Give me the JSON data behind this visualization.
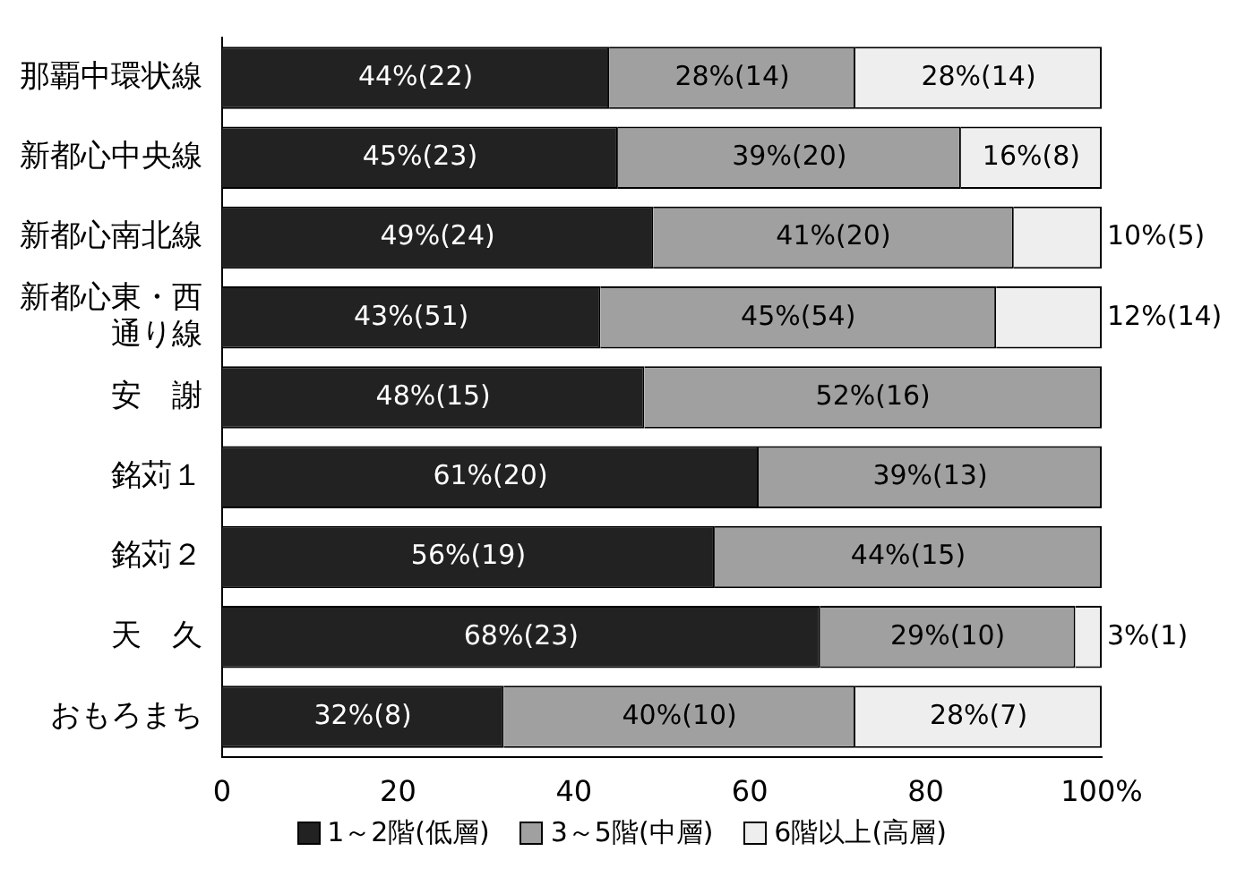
{
  "chart_data": {
    "type": "bar",
    "orientation": "horizontal",
    "stacked": true,
    "categories": [
      "那覇中環状線",
      "新都心中央線",
      "新都心南北線",
      "新都心東・西通り線",
      "安　謝",
      "銘苅１",
      "銘苅２",
      "天　久",
      "おもろまち"
    ],
    "series": [
      {
        "name": "1～2階(低層)",
        "color": "#222222",
        "values": [
          44,
          45,
          49,
          43,
          48,
          61,
          56,
          68,
          32
        ],
        "value_labels": [
          "44%(22)",
          "45%(23)",
          "49%(24)",
          "43%(51)",
          "48%(15)",
          "61%(20)",
          "56%(19)",
          "68%(23)",
          "32%(8)"
        ]
      },
      {
        "name": "3～5階(中層)",
        "color": "#a0a0a0",
        "values": [
          28,
          39,
          41,
          45,
          52,
          39,
          44,
          29,
          40
        ],
        "value_labels": [
          "28%(14)",
          "39%(20)",
          "41%(20)",
          "45%(54)",
          "52%(16)",
          "39%(13)",
          "44%(15)",
          "29%(10)",
          "40%(10)"
        ]
      },
      {
        "name": "6階以上(高層)",
        "color": "#eeeeee",
        "values": [
          28,
          16,
          10,
          12,
          null,
          null,
          null,
          3,
          28
        ],
        "value_labels": [
          "28%(14)",
          "16%(8)",
          "10%(5)",
          "12%(14)",
          null,
          null,
          null,
          "3%(1)",
          "28%(7)"
        ]
      }
    ],
    "xlim": [
      0,
      100
    ],
    "xticks": [
      0,
      20,
      40,
      60,
      80,
      {
        "value": 100,
        "label": "100%"
      }
    ],
    "grid": false,
    "legend": "bottom"
  }
}
